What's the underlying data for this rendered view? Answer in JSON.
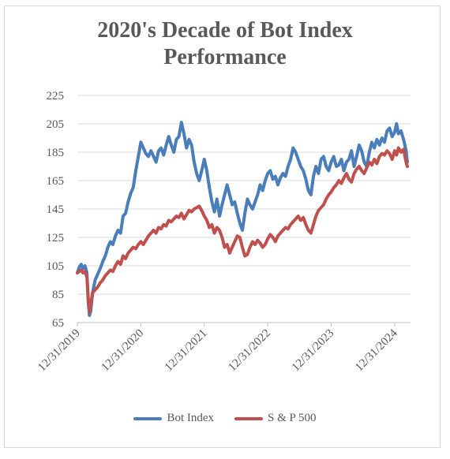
{
  "chart_data": {
    "type": "line",
    "title_lines": [
      "2020's Decade of Bot Index",
      "Performance"
    ],
    "xlabel": "",
    "ylabel": "",
    "ylim": [
      65,
      225
    ],
    "y_ticks": [
      225,
      205,
      185,
      165,
      145,
      125,
      105,
      85,
      65
    ],
    "x_ticks": [
      "12/31/2019",
      "12/31/2020",
      "12/31/2021",
      "12/31/2022",
      "12/31/2023",
      "12/31/2024"
    ],
    "grid": true,
    "legend_position": "bottom",
    "x_range": [
      2020.0,
      2025.25
    ],
    "series": [
      {
        "name": "Bot Index",
        "color": "#4a7ebb",
        "points": [
          [
            2020.0,
            100
          ],
          [
            2020.03,
            104
          ],
          [
            2020.06,
            106
          ],
          [
            2020.09,
            103
          ],
          [
            2020.12,
            105
          ],
          [
            2020.15,
            100
          ],
          [
            2020.17,
            80
          ],
          [
            2020.19,
            70
          ],
          [
            2020.21,
            73
          ],
          [
            2020.24,
            86
          ],
          [
            2020.28,
            95
          ],
          [
            2020.32,
            99
          ],
          [
            2020.36,
            103
          ],
          [
            2020.4,
            108
          ],
          [
            2020.44,
            112
          ],
          [
            2020.48,
            118
          ],
          [
            2020.52,
            122
          ],
          [
            2020.56,
            120
          ],
          [
            2020.6,
            126
          ],
          [
            2020.64,
            130
          ],
          [
            2020.68,
            128
          ],
          [
            2020.72,
            140
          ],
          [
            2020.76,
            142
          ],
          [
            2020.8,
            150
          ],
          [
            2020.84,
            156
          ],
          [
            2020.88,
            160
          ],
          [
            2020.92,
            172
          ],
          [
            2020.96,
            182
          ],
          [
            2021.0,
            192
          ],
          [
            2021.04,
            188
          ],
          [
            2021.08,
            184
          ],
          [
            2021.12,
            182
          ],
          [
            2021.16,
            186
          ],
          [
            2021.2,
            182
          ],
          [
            2021.24,
            178
          ],
          [
            2021.28,
            186
          ],
          [
            2021.32,
            188
          ],
          [
            2021.36,
            183
          ],
          [
            2021.4,
            190
          ],
          [
            2021.44,
            196
          ],
          [
            2021.48,
            190
          ],
          [
            2021.52,
            185
          ],
          [
            2021.56,
            194
          ],
          [
            2021.6,
            196
          ],
          [
            2021.64,
            206
          ],
          [
            2021.68,
            198
          ],
          [
            2021.72,
            188
          ],
          [
            2021.76,
            194
          ],
          [
            2021.8,
            190
          ],
          [
            2021.84,
            178
          ],
          [
            2021.88,
            170
          ],
          [
            2021.92,
            165
          ],
          [
            2021.96,
            172
          ],
          [
            2022.0,
            180
          ],
          [
            2022.04,
            172
          ],
          [
            2022.08,
            160
          ],
          [
            2022.12,
            150
          ],
          [
            2022.16,
            143
          ],
          [
            2022.2,
            152
          ],
          [
            2022.24,
            140
          ],
          [
            2022.28,
            148
          ],
          [
            2022.32,
            155
          ],
          [
            2022.36,
            162
          ],
          [
            2022.4,
            155
          ],
          [
            2022.44,
            148
          ],
          [
            2022.48,
            150
          ],
          [
            2022.52,
            142
          ],
          [
            2022.56,
            135
          ],
          [
            2022.6,
            130
          ],
          [
            2022.64,
            142
          ],
          [
            2022.68,
            152
          ],
          [
            2022.72,
            148
          ],
          [
            2022.76,
            145
          ],
          [
            2022.8,
            150
          ],
          [
            2022.84,
            155
          ],
          [
            2022.88,
            162
          ],
          [
            2022.92,
            158
          ],
          [
            2022.96,
            165
          ],
          [
            2023.0,
            170
          ],
          [
            2023.04,
            172
          ],
          [
            2023.08,
            166
          ],
          [
            2023.12,
            168
          ],
          [
            2023.16,
            162
          ],
          [
            2023.2,
            167
          ],
          [
            2023.24,
            170
          ],
          [
            2023.28,
            168
          ],
          [
            2023.32,
            175
          ],
          [
            2023.36,
            180
          ],
          [
            2023.4,
            188
          ],
          [
            2023.44,
            185
          ],
          [
            2023.48,
            180
          ],
          [
            2023.52,
            175
          ],
          [
            2023.56,
            172
          ],
          [
            2023.6,
            166
          ],
          [
            2023.64,
            158
          ],
          [
            2023.68,
            155
          ],
          [
            2023.72,
            168
          ],
          [
            2023.76,
            175
          ],
          [
            2023.8,
            170
          ],
          [
            2023.84,
            180
          ],
          [
            2023.88,
            182
          ],
          [
            2023.92,
            175
          ],
          [
            2023.96,
            172
          ],
          [
            2024.0,
            178
          ],
          [
            2024.04,
            182
          ],
          [
            2024.08,
            175
          ],
          [
            2024.12,
            176
          ],
          [
            2024.16,
            180
          ],
          [
            2024.2,
            172
          ],
          [
            2024.24,
            178
          ],
          [
            2024.28,
            180
          ],
          [
            2024.32,
            186
          ],
          [
            2024.36,
            175
          ],
          [
            2024.4,
            182
          ],
          [
            2024.44,
            190
          ],
          [
            2024.48,
            186
          ],
          [
            2024.52,
            178
          ],
          [
            2024.56,
            175
          ],
          [
            2024.6,
            185
          ],
          [
            2024.64,
            192
          ],
          [
            2024.68,
            188
          ],
          [
            2024.72,
            194
          ],
          [
            2024.76,
            190
          ],
          [
            2024.8,
            195
          ],
          [
            2024.84,
            192
          ],
          [
            2024.88,
            200
          ],
          [
            2024.92,
            202
          ],
          [
            2024.96,
            196
          ],
          [
            2025.0,
            199
          ],
          [
            2025.03,
            205
          ],
          [
            2025.06,
            198
          ],
          [
            2025.1,
            200
          ],
          [
            2025.14,
            194
          ],
          [
            2025.18,
            186
          ],
          [
            2025.2,
            178
          ]
        ]
      },
      {
        "name": "S & P 500",
        "color": "#c0504d",
        "points": [
          [
            2020.0,
            100
          ],
          [
            2020.03,
            101
          ],
          [
            2020.06,
            102
          ],
          [
            2020.09,
            100
          ],
          [
            2020.12,
            101
          ],
          [
            2020.15,
            97
          ],
          [
            2020.17,
            83
          ],
          [
            2020.19,
            72
          ],
          [
            2020.21,
            78
          ],
          [
            2020.24,
            86
          ],
          [
            2020.28,
            88
          ],
          [
            2020.32,
            90
          ],
          [
            2020.36,
            93
          ],
          [
            2020.4,
            95
          ],
          [
            2020.44,
            98
          ],
          [
            2020.48,
            100
          ],
          [
            2020.52,
            102
          ],
          [
            2020.56,
            101
          ],
          [
            2020.6,
            105
          ],
          [
            2020.64,
            108
          ],
          [
            2020.68,
            106
          ],
          [
            2020.72,
            112
          ],
          [
            2020.76,
            110
          ],
          [
            2020.8,
            114
          ],
          [
            2020.84,
            116
          ],
          [
            2020.88,
            118
          ],
          [
            2020.92,
            117
          ],
          [
            2020.96,
            120
          ],
          [
            2021.0,
            122
          ],
          [
            2021.04,
            120
          ],
          [
            2021.08,
            123
          ],
          [
            2021.12,
            126
          ],
          [
            2021.16,
            128
          ],
          [
            2021.2,
            130
          ],
          [
            2021.24,
            128
          ],
          [
            2021.28,
            132
          ],
          [
            2021.32,
            131
          ],
          [
            2021.36,
            134
          ],
          [
            2021.4,
            133
          ],
          [
            2021.44,
            137
          ],
          [
            2021.48,
            136
          ],
          [
            2021.52,
            138
          ],
          [
            2021.56,
            140
          ],
          [
            2021.6,
            139
          ],
          [
            2021.64,
            142
          ],
          [
            2021.68,
            138
          ],
          [
            2021.72,
            141
          ],
          [
            2021.76,
            144
          ],
          [
            2021.8,
            143
          ],
          [
            2021.84,
            145
          ],
          [
            2021.88,
            146
          ],
          [
            2021.92,
            147
          ],
          [
            2021.96,
            144
          ],
          [
            2022.0,
            140
          ],
          [
            2022.04,
            137
          ],
          [
            2022.08,
            132
          ],
          [
            2022.12,
            134
          ],
          [
            2022.16,
            128
          ],
          [
            2022.2,
            132
          ],
          [
            2022.24,
            130
          ],
          [
            2022.28,
            125
          ],
          [
            2022.32,
            118
          ],
          [
            2022.36,
            120
          ],
          [
            2022.4,
            114
          ],
          [
            2022.44,
            118
          ],
          [
            2022.48,
            122
          ],
          [
            2022.52,
            126
          ],
          [
            2022.56,
            125
          ],
          [
            2022.6,
            118
          ],
          [
            2022.64,
            112
          ],
          [
            2022.68,
            113
          ],
          [
            2022.72,
            118
          ],
          [
            2022.76,
            122
          ],
          [
            2022.8,
            120
          ],
          [
            2022.84,
            123
          ],
          [
            2022.88,
            121
          ],
          [
            2022.92,
            118
          ],
          [
            2022.96,
            120
          ],
          [
            2023.0,
            124
          ],
          [
            2023.04,
            127
          ],
          [
            2023.08,
            125
          ],
          [
            2023.12,
            122
          ],
          [
            2023.16,
            126
          ],
          [
            2023.2,
            128
          ],
          [
            2023.24,
            130
          ],
          [
            2023.28,
            132
          ],
          [
            2023.32,
            131
          ],
          [
            2023.36,
            134
          ],
          [
            2023.4,
            136
          ],
          [
            2023.44,
            138
          ],
          [
            2023.48,
            140
          ],
          [
            2023.52,
            137
          ],
          [
            2023.56,
            139
          ],
          [
            2023.6,
            134
          ],
          [
            2023.64,
            130
          ],
          [
            2023.68,
            128
          ],
          [
            2023.72,
            134
          ],
          [
            2023.76,
            140
          ],
          [
            2023.8,
            144
          ],
          [
            2023.84,
            146
          ],
          [
            2023.88,
            148
          ],
          [
            2023.92,
            152
          ],
          [
            2023.96,
            155
          ],
          [
            2024.0,
            157
          ],
          [
            2024.04,
            160
          ],
          [
            2024.08,
            162
          ],
          [
            2024.12,
            165
          ],
          [
            2024.16,
            163
          ],
          [
            2024.2,
            167
          ],
          [
            2024.24,
            170
          ],
          [
            2024.28,
            166
          ],
          [
            2024.32,
            164
          ],
          [
            2024.36,
            170
          ],
          [
            2024.4,
            173
          ],
          [
            2024.44,
            175
          ],
          [
            2024.48,
            172
          ],
          [
            2024.52,
            170
          ],
          [
            2024.56,
            174
          ],
          [
            2024.6,
            178
          ],
          [
            2024.64,
            176
          ],
          [
            2024.68,
            180
          ],
          [
            2024.72,
            177
          ],
          [
            2024.76,
            182
          ],
          [
            2024.8,
            184
          ],
          [
            2024.84,
            183
          ],
          [
            2024.88,
            186
          ],
          [
            2024.92,
            184
          ],
          [
            2024.96,
            180
          ],
          [
            2025.0,
            186
          ],
          [
            2025.03,
            183
          ],
          [
            2025.06,
            188
          ],
          [
            2025.1,
            185
          ],
          [
            2025.14,
            187
          ],
          [
            2025.18,
            178
          ],
          [
            2025.2,
            175
          ]
        ]
      }
    ]
  },
  "legend": {
    "items": [
      {
        "label": "Bot Index",
        "color": "#4a7ebb"
      },
      {
        "label": "S & P 500",
        "color": "#c0504d"
      }
    ]
  }
}
